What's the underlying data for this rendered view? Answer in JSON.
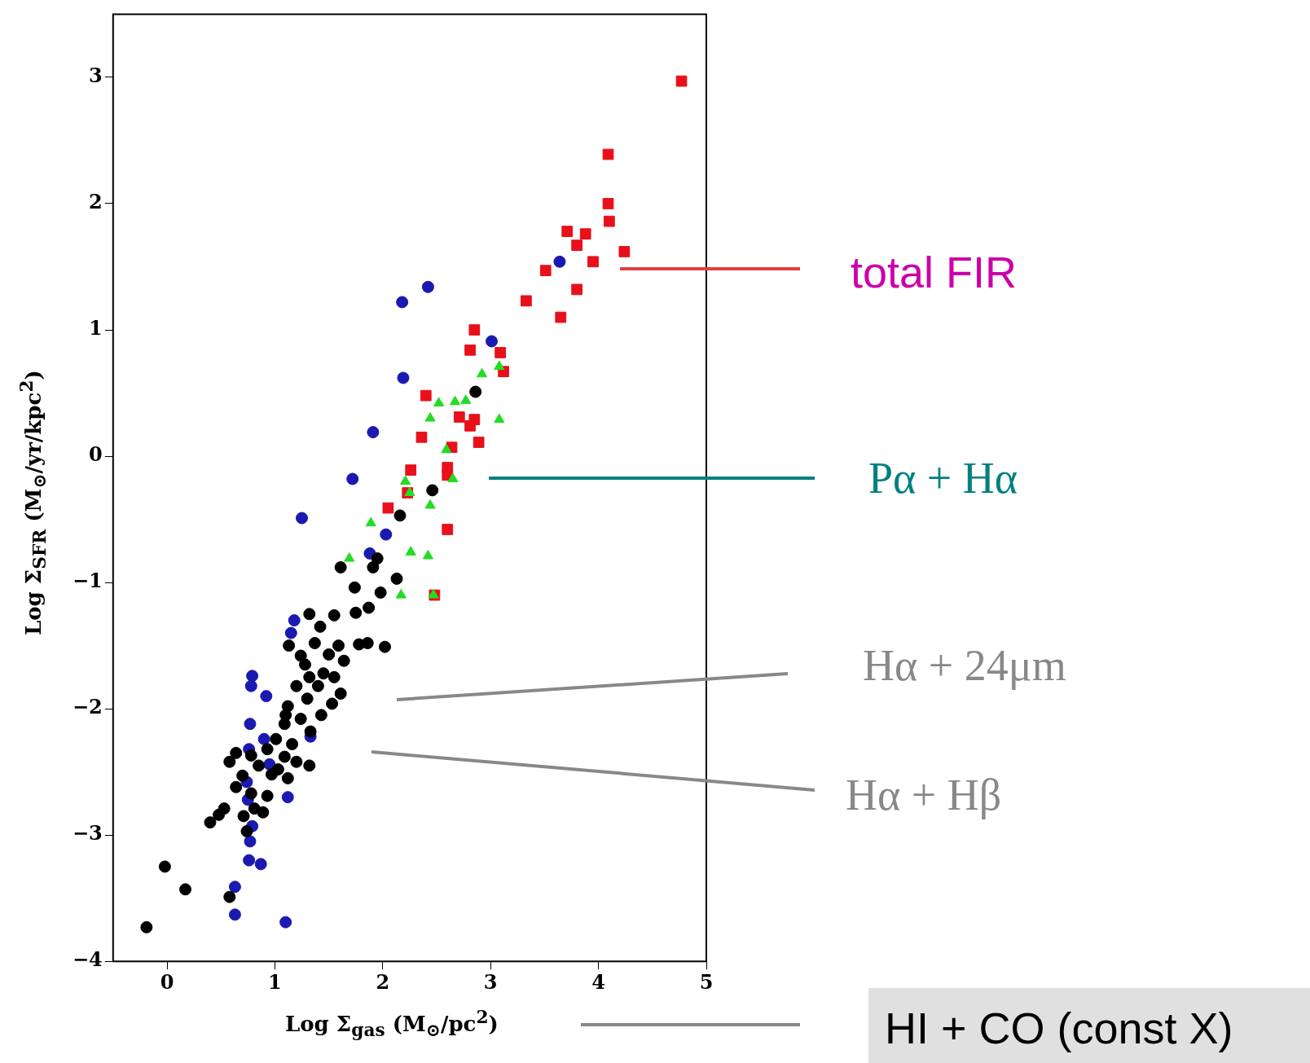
{
  "chart_data": {
    "type": "scatter",
    "xlabel": "Log Σ$_{gas}$  (M$_{⊙}$/pc$^{2}$)",
    "ylabel": "Log Σ$_{SFR}$  (M$_{⊙}$/yr/kpc$^{2}$)",
    "xlim": [
      -0.5,
      5
    ],
    "xticks": [
      0,
      1,
      2,
      3,
      4,
      5
    ],
    "ylim": [
      -4,
      3.5
    ],
    "yticks": [
      -4,
      -3,
      -2,
      -1,
      0,
      1,
      2,
      3
    ],
    "grid": false,
    "legend": false,
    "annotations": [
      "total FIR",
      "Pα + Hα",
      "Hα + 24μm",
      "Hα + Hβ",
      "HI + CO (const X)"
    ],
    "series": [
      {
        "color": "#000000",
        "marker": "circle",
        "x": [
          2.86,
          2.46,
          2.16,
          1.61,
          1.74,
          1.91,
          1.98,
          2.13,
          1.95,
          1.32,
          1.55,
          1.75,
          1.87,
          1.42,
          1.13,
          1.24,
          1.37,
          1.59,
          1.78,
          1.86,
          2.02,
          1.5,
          1.28,
          1.64,
          1.45,
          1.55,
          1.32,
          1.4,
          1.61,
          1.2,
          1.53,
          1.3,
          1.12,
          1.43,
          1.24,
          1.09,
          1.33,
          1.01,
          1.16,
          0.93,
          0.78,
          0.64,
          0.58,
          1.09,
          0.85,
          0.7,
          0.97,
          0.64,
          0.78,
          0.93,
          0.81,
          0.89,
          0.71,
          0.53,
          0.48,
          0.4,
          0.74,
          -0.02,
          0.17,
          0.58,
          -0.19,
          1.1,
          1.2,
          1.32,
          1.03,
          1.12
        ],
        "values": [
          0.51,
          -0.27,
          -0.47,
          -0.88,
          -1.04,
          -0.88,
          -1.08,
          -0.97,
          -0.81,
          -1.25,
          -1.26,
          -1.24,
          -1.2,
          -1.35,
          -1.5,
          -1.58,
          -1.48,
          -1.5,
          -1.49,
          -1.48,
          -1.51,
          -1.57,
          -1.65,
          -1.62,
          -1.72,
          -1.75,
          -1.75,
          -1.82,
          -1.88,
          -1.82,
          -1.96,
          -1.92,
          -1.98,
          -2.05,
          -2.08,
          -2.12,
          -2.18,
          -2.24,
          -2.28,
          -2.32,
          -2.37,
          -2.35,
          -2.42,
          -2.38,
          -2.45,
          -2.53,
          -2.52,
          -2.62,
          -2.67,
          -2.69,
          -2.79,
          -2.82,
          -2.85,
          -2.79,
          -2.84,
          -2.9,
          -2.97,
          -3.25,
          -3.43,
          -3.49,
          -3.73,
          -2.05,
          -2.42,
          -2.45,
          -2.48,
          -2.55
        ]
      },
      {
        "color": "#1a1ab0",
        "marker": "circle",
        "x": [
          3.64,
          2.42,
          2.18,
          3.01,
          2.19,
          1.91,
          1.72,
          1.25,
          2.03,
          1.88,
          1.18,
          1.15,
          0.79,
          0.78,
          0.92,
          0.77,
          0.9,
          1.33,
          0.76,
          0.75,
          1.12,
          0.79,
          0.77,
          0.76,
          0.87,
          0.63,
          0.63,
          1.1,
          0.74,
          0.95
        ],
        "values": [
          1.54,
          1.34,
          1.22,
          0.91,
          0.62,
          0.19,
          -0.18,
          -0.49,
          -0.62,
          -0.77,
          -1.3,
          -1.4,
          -1.74,
          -1.82,
          -1.9,
          -2.12,
          -2.24,
          -2.22,
          -2.32,
          -2.72,
          -2.7,
          -2.93,
          -3.05,
          -3.2,
          -3.23,
          -3.41,
          -3.63,
          -3.69,
          -2.58,
          -2.44
        ]
      },
      {
        "color": "#22dd22",
        "marker": "triangle",
        "x": [
          3.08,
          2.92,
          3.08,
          2.52,
          2.67,
          2.77,
          2.44,
          2.59,
          2.65,
          2.21,
          2.25,
          2.44,
          1.89,
          1.69,
          2.26,
          2.42,
          2.17,
          2.47
        ],
        "values": [
          0.71,
          0.65,
          0.29,
          0.42,
          0.43,
          0.44,
          0.3,
          0.05,
          -0.18,
          -0.2,
          -0.29,
          -0.39,
          -0.53,
          -0.81,
          -0.76,
          -0.79,
          -1.1,
          -1.1
        ]
      },
      {
        "color": "#e8101a",
        "marker": "square",
        "x": [
          4.77,
          4.09,
          4.09,
          4.1,
          4.24,
          3.71,
          3.88,
          3.8,
          3.95,
          3.51,
          3.8,
          3.33,
          3.65,
          2.85,
          2.81,
          3.09,
          3.12,
          2.4,
          2.71,
          2.85,
          2.81,
          2.36,
          2.89,
          2.64,
          2.26,
          2.6,
          2.6,
          2.23,
          2.05,
          2.6,
          2.48
        ],
        "values": [
          2.97,
          2.39,
          2.0,
          1.86,
          1.62,
          1.78,
          1.76,
          1.67,
          1.54,
          1.47,
          1.32,
          1.23,
          1.1,
          1.0,
          0.84,
          0.82,
          0.67,
          0.48,
          0.31,
          0.29,
          0.24,
          0.15,
          0.11,
          0.07,
          -0.11,
          -0.09,
          -0.15,
          -0.29,
          -0.41,
          -0.58,
          -1.1
        ]
      }
    ]
  }
}
